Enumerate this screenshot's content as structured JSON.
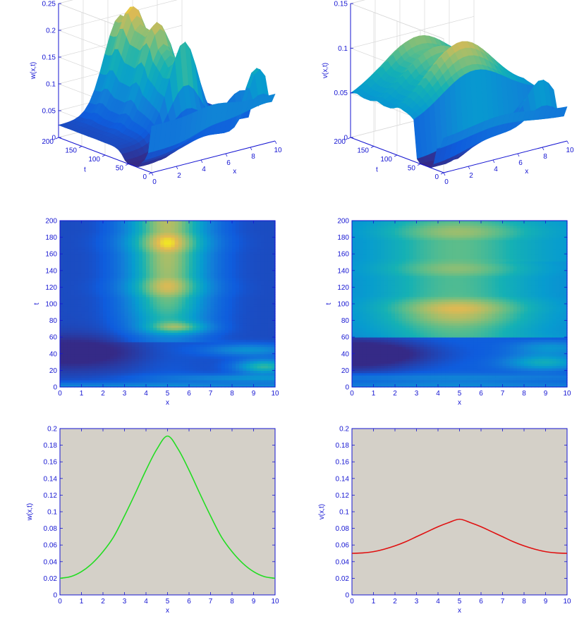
{
  "colors": {
    "axis": "#1414d2",
    "line_w": "#22dd22",
    "line_v": "#e01010",
    "profile_bg": "#d4d0c8"
  },
  "chart_data": [
    {
      "id": "surf-w",
      "type": "surface3d",
      "xlabel": "x",
      "ylabel": "t",
      "zlabel": "w(x,t)",
      "xlim": [
        0,
        10
      ],
      "ylim": [
        0,
        200
      ],
      "zlim": [
        0,
        0.25
      ],
      "xticks": [
        "0",
        "2",
        "4",
        "6",
        "8",
        "10"
      ],
      "yticks": [
        "0",
        "50",
        "100",
        "150",
        "200"
      ],
      "zticks": [
        "0",
        "0.05",
        "0.1",
        "0.15",
        "0.2",
        "0.25"
      ],
      "grid": true
    },
    {
      "id": "surf-v",
      "type": "surface3d",
      "xlabel": "x",
      "ylabel": "t",
      "zlabel": "v(x,t)",
      "xlim": [
        0,
        10
      ],
      "ylim": [
        0,
        200
      ],
      "zlim": [
        0,
        0.15
      ],
      "xticks": [
        "0",
        "2",
        "4",
        "6",
        "8",
        "10"
      ],
      "yticks": [
        "0",
        "50",
        "100",
        "150",
        "200"
      ],
      "zticks": [
        "0",
        "0.05",
        "0.1",
        "0.15"
      ],
      "grid": true
    },
    {
      "id": "contour-w",
      "type": "heatmap",
      "xlabel": "x",
      "ylabel": "t",
      "xlim": [
        0,
        10
      ],
      "ylim": [
        0,
        200
      ],
      "xticks": [
        "0",
        "1",
        "2",
        "3",
        "4",
        "5",
        "6",
        "7",
        "8",
        "9",
        "10"
      ],
      "yticks": [
        "0",
        "20",
        "40",
        "60",
        "80",
        "100",
        "120",
        "140",
        "160",
        "180",
        "200"
      ]
    },
    {
      "id": "contour-v",
      "type": "heatmap",
      "xlabel": "x",
      "ylabel": "t",
      "xlim": [
        0,
        10
      ],
      "ylim": [
        0,
        200
      ],
      "xticks": [
        "0",
        "1",
        "2",
        "3",
        "4",
        "5",
        "6",
        "7",
        "8",
        "9",
        "10"
      ],
      "yticks": [
        "0",
        "20",
        "40",
        "60",
        "80",
        "100",
        "120",
        "140",
        "160",
        "180",
        "200"
      ]
    },
    {
      "id": "profile-w",
      "type": "line",
      "xlabel": "x",
      "ylabel": "w(x,t)",
      "xlim": [
        0,
        10
      ],
      "ylim": [
        0,
        0.2
      ],
      "xticks": [
        "0",
        "1",
        "2",
        "3",
        "4",
        "5",
        "6",
        "7",
        "8",
        "9",
        "10"
      ],
      "yticks": [
        "0",
        "0.02",
        "0.04",
        "0.06",
        "0.08",
        "0.1",
        "0.12",
        "0.14",
        "0.16",
        "0.18",
        "0.2"
      ],
      "x": [
        0,
        0.5,
        1,
        1.5,
        2,
        2.5,
        3,
        3.5,
        4,
        4.5,
        5,
        5.5,
        6,
        6.5,
        7,
        7.5,
        8,
        8.5,
        9,
        9.5,
        10
      ],
      "y": [
        0.02,
        0.022,
        0.028,
        0.038,
        0.052,
        0.07,
        0.095,
        0.122,
        0.15,
        0.175,
        0.191,
        0.175,
        0.15,
        0.122,
        0.095,
        0.07,
        0.052,
        0.038,
        0.028,
        0.022,
        0.02
      ]
    },
    {
      "id": "profile-v",
      "type": "line",
      "xlabel": "x",
      "ylabel": "v(x,t)",
      "xlim": [
        0,
        10
      ],
      "ylim": [
        0,
        0.2
      ],
      "xticks": [
        "0",
        "1",
        "2",
        "3",
        "4",
        "5",
        "6",
        "7",
        "8",
        "9",
        "10"
      ],
      "yticks": [
        "0",
        "0.02",
        "0.04",
        "0.06",
        "0.08",
        "0.1",
        "0.12",
        "0.14",
        "0.16",
        "0.18",
        "0.2"
      ],
      "x": [
        0,
        0.5,
        1,
        1.5,
        2,
        2.5,
        3,
        3.5,
        4,
        4.5,
        5,
        5.5,
        6,
        6.5,
        7,
        7.5,
        8,
        8.5,
        9,
        9.5,
        10
      ],
      "y": [
        0.05,
        0.0505,
        0.052,
        0.055,
        0.059,
        0.064,
        0.07,
        0.076,
        0.082,
        0.087,
        0.091,
        0.087,
        0.082,
        0.076,
        0.07,
        0.064,
        0.059,
        0.055,
        0.052,
        0.0505,
        0.05
      ]
    }
  ]
}
